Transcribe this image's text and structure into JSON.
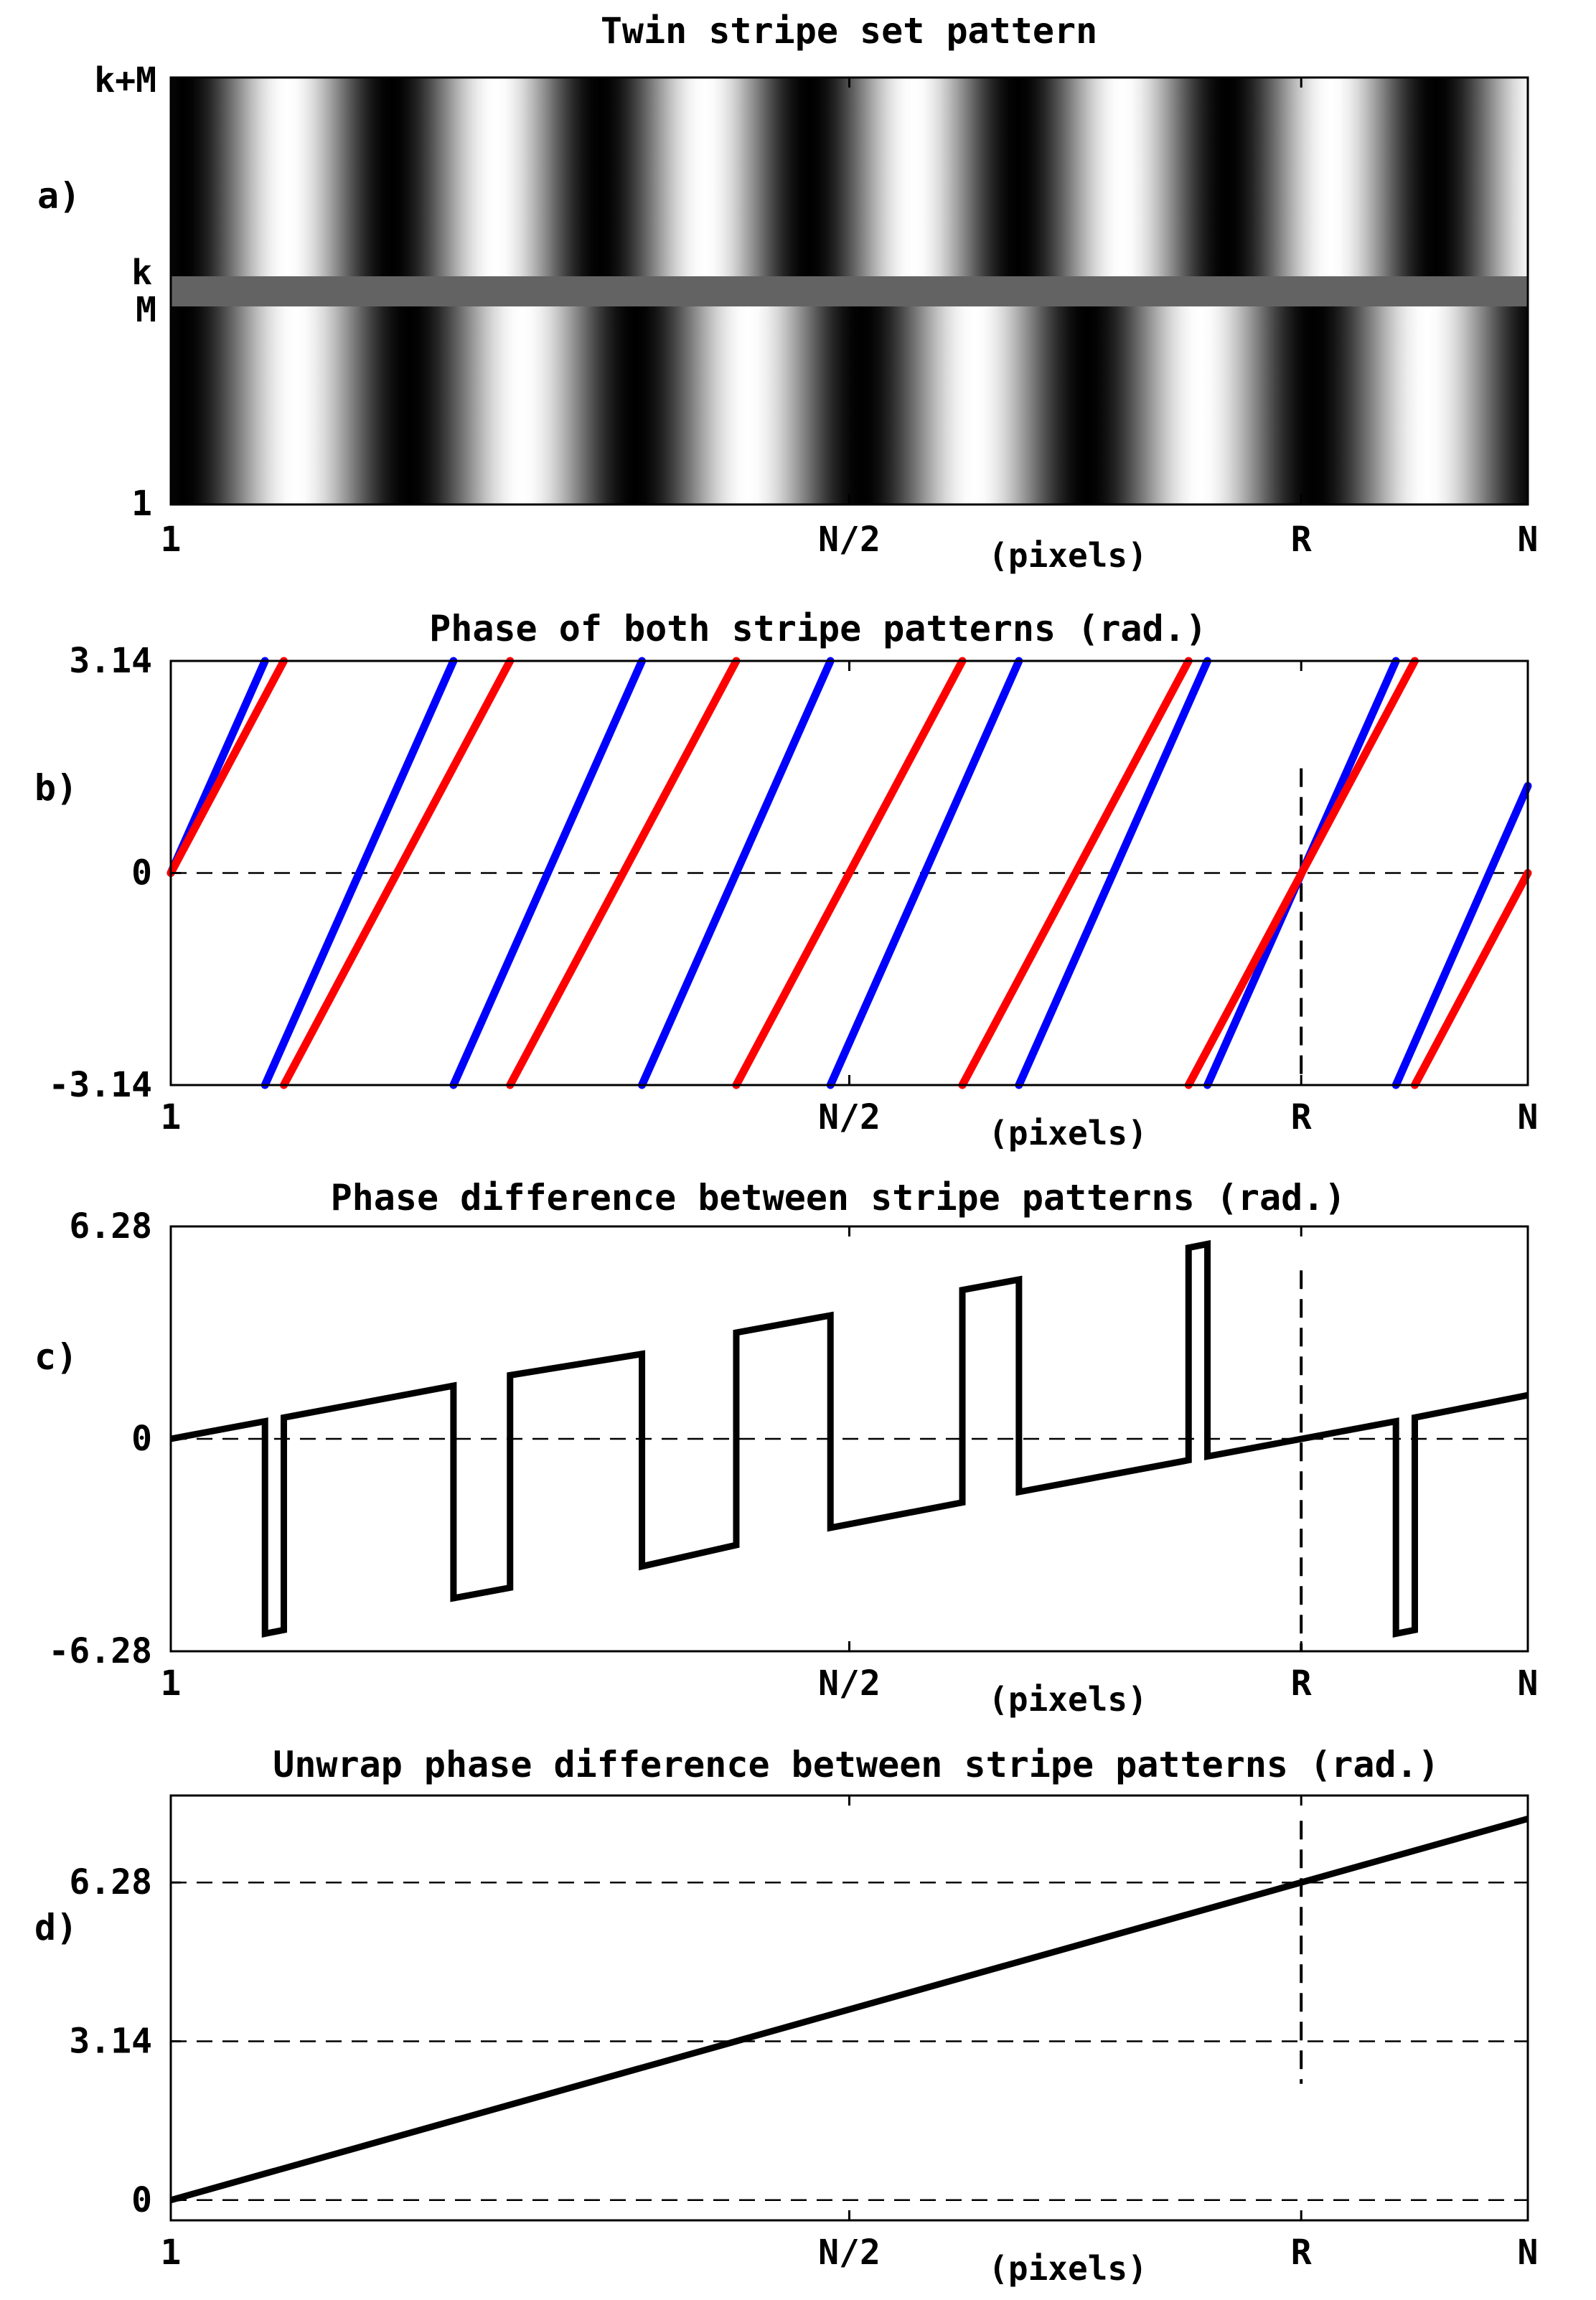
{
  "x_tick_labels": [
    "1",
    "N/2",
    "R",
    "N"
  ],
  "x_unit": "(pixels)",
  "colors": {
    "blue": "#0000ff",
    "red": "#ff0000",
    "black": "#000000",
    "separator": "#636363"
  },
  "chart_data": [
    {
      "type": "heatmap",
      "panel": "a)",
      "title": "Twin stripe set pattern",
      "xlabel": "(pixels)",
      "x_ticks": [
        "1",
        "N/2",
        "R",
        "N"
      ],
      "y_ticks": [
        "k+M",
        "k",
        "M",
        "1"
      ],
      "stripe_periods_upper": 6.5,
      "stripe_periods_lower": 6.0,
      "separator": "gray band between rows M and k"
    },
    {
      "type": "line",
      "panel": "b)",
      "title": "Phase of both stripe patterns (rad.)",
      "xlabel": "(pixels)",
      "x_ticks": [
        "1",
        "N/2",
        "R",
        "N"
      ],
      "y_ticks": [
        "3.14",
        "0",
        "-3.14"
      ],
      "ylim": [
        -3.14,
        3.14
      ],
      "xlim": [
        0,
        1
      ],
      "R_x": 0.833,
      "series": [
        {
          "color": "blue",
          "x": [
            0,
            0.0694,
            0.0694,
            0.2083,
            0.2083,
            0.3472,
            0.3472,
            0.4861,
            0.4861,
            0.625,
            0.625,
            0.7639,
            0.7639,
            0.9028,
            0.9028,
            1.0
          ],
          "y": [
            0,
            3.14,
            -3.14,
            3.14,
            -3.14,
            3.14,
            -3.14,
            3.14,
            -3.14,
            3.14,
            -3.14,
            3.14,
            -3.14,
            3.14,
            -3.14,
            1.29
          ]
        },
        {
          "color": "red",
          "x": [
            0,
            0.0833,
            0.0833,
            0.25,
            0.25,
            0.4167,
            0.4167,
            0.5833,
            0.5833,
            0.75,
            0.75,
            0.9167,
            0.9167,
            1.0
          ],
          "y": [
            0,
            3.14,
            -3.14,
            3.14,
            -3.14,
            3.14,
            -3.14,
            3.14,
            -3.14,
            3.14,
            -3.14,
            3.14,
            -3.14,
            0
          ]
        }
      ]
    },
    {
      "type": "line",
      "panel": "c)",
      "title": "Phase difference between stripe patterns (rad.)",
      "xlabel": "(pixels)",
      "x_ticks": [
        "1",
        "N/2",
        "R",
        "N"
      ],
      "y_ticks": [
        "6.28",
        "0",
        "-6.28"
      ],
      "ylim": [
        -6.28,
        6.28
      ],
      "xlim": [
        0,
        1
      ],
      "R_x": 0.833,
      "series": [
        {
          "color": "black",
          "x": [
            0,
            0.0694,
            0.0694,
            0.0833,
            0.0833,
            0.2083,
            0.2083,
            0.25,
            0.25,
            0.3472,
            0.3472,
            0.4167,
            0.4167,
            0.4861,
            0.4861,
            0.5833,
            0.5833,
            0.625,
            0.625,
            0.75,
            0.75,
            0.7639,
            0.7639,
            0.9028,
            0.9028,
            0.9167,
            0.9167,
            1.0
          ],
          "y": [
            0,
            0.52,
            -5.76,
            -5.65,
            0.63,
            1.57,
            -4.71,
            -4.4,
            1.88,
            2.51,
            -3.77,
            -3.14,
            3.14,
            3.65,
            -2.63,
            -1.88,
            4.4,
            4.71,
            -1.57,
            -0.63,
            5.65,
            5.76,
            -0.52,
            0.52,
            -5.76,
            -5.65,
            0.63,
            1.29
          ]
        }
      ]
    },
    {
      "type": "line",
      "panel": "d)",
      "title": "Unwrap phase difference between stripe patterns (rad.)",
      "xlabel": "(pixels)",
      "x_ticks": [
        "1",
        "N/2",
        "R",
        "N"
      ],
      "y_ticks": [
        "6.28",
        "3.14",
        "0"
      ],
      "ylim": [
        -0.4,
        8.0
      ],
      "xlim": [
        0,
        1
      ],
      "R_x": 0.833,
      "series": [
        {
          "color": "black",
          "x": [
            0,
            1.0
          ],
          "y": [
            0,
            7.54
          ]
        }
      ]
    }
  ]
}
